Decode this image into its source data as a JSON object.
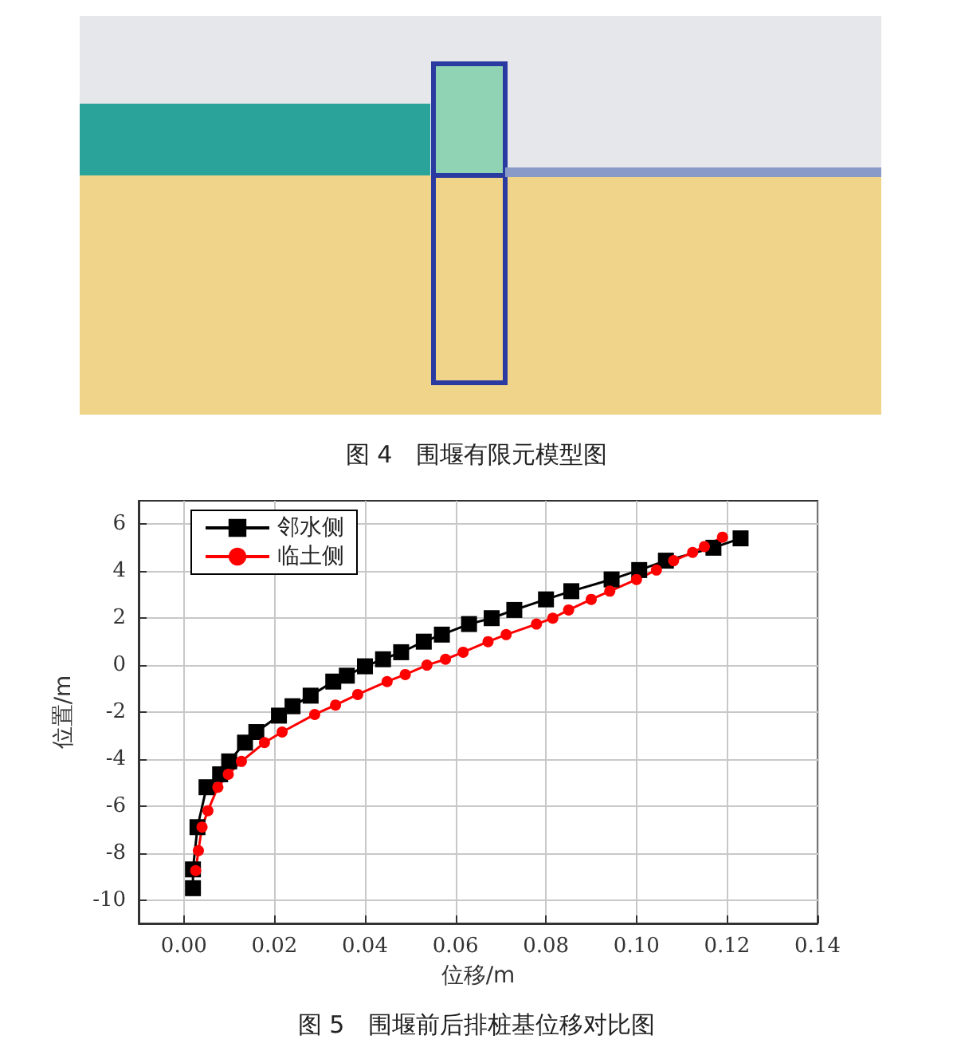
{
  "chart_data": {
    "type": "line",
    "title": "图 5　围堰前后排桩基位移对比图",
    "xlabel": "位移/m",
    "ylabel": "位置/m",
    "annotations": [
      "图 4　围堰有限元模型图"
    ],
    "xlim": [
      -0.01,
      0.14
    ],
    "ylim": [
      -11,
      7
    ],
    "xticks": [
      {
        "value": 0,
        "label": "0.00"
      },
      {
        "value": 0.02,
        "label": "0.02"
      },
      {
        "value": 0.04,
        "label": "0.04"
      },
      {
        "value": 0.06,
        "label": "0.06"
      },
      {
        "value": 0.08,
        "label": "0.08"
      },
      {
        "value": 0.1,
        "label": "0.10"
      },
      {
        "value": 0.12,
        "label": "0.12"
      },
      {
        "value": 0.14,
        "label": "0.14"
      }
    ],
    "yticks": [
      -10,
      -8,
      -6,
      -4,
      -2,
      0,
      2,
      4,
      6
    ],
    "grid": true,
    "legend": "top left",
    "line_style": "solid",
    "series": [
      {
        "name": "邻水侧",
        "color": "#000000",
        "marker": "square",
        "x": [
          0.002,
          0.002,
          0.003,
          0.005,
          0.008,
          0.01,
          0.0135,
          0.016,
          0.021,
          0.024,
          0.028,
          0.033,
          0.036,
          0.04,
          0.044,
          0.048,
          0.053,
          0.057,
          0.063,
          0.068,
          0.073,
          0.08,
          0.0856,
          0.0945,
          0.1006,
          0.1065,
          0.117,
          0.123
        ],
        "values": [
          -9.5,
          -8.7,
          -6.9,
          -5.2,
          -4.65,
          -4.1,
          -3.3,
          -2.85,
          -2.15,
          -1.75,
          -1.3,
          -0.7,
          -0.45,
          -0.05,
          0.25,
          0.55,
          1.0,
          1.3,
          1.75,
          2.0,
          2.35,
          2.8,
          3.15,
          3.65,
          4.05,
          4.45,
          5.0,
          5.4
        ]
      },
      {
        "name": "临土侧",
        "color": "#ff0000",
        "marker": "circle",
        "x": [
          0.0026,
          0.0032,
          0.004,
          0.0053,
          0.0075,
          0.0098,
          0.0127,
          0.0178,
          0.0217,
          0.0289,
          0.0335,
          0.0384,
          0.0449,
          0.0489,
          0.0537,
          0.0578,
          0.0617,
          0.0672,
          0.0712,
          0.0779,
          0.0815,
          0.085,
          0.09,
          0.0941,
          0.1,
          0.1044,
          0.1082,
          0.1124,
          0.115,
          0.119
        ],
        "values": [
          -8.75,
          -7.9,
          -6.9,
          -6.2,
          -5.2,
          -4.65,
          -4.1,
          -3.3,
          -2.85,
          -2.1,
          -1.7,
          -1.25,
          -0.7,
          -0.4,
          0.0,
          0.25,
          0.55,
          1.0,
          1.3,
          1.75,
          2.0,
          2.35,
          2.8,
          3.15,
          3.65,
          4.05,
          4.45,
          4.8,
          5.05,
          5.45
        ]
      }
    ]
  }
}
